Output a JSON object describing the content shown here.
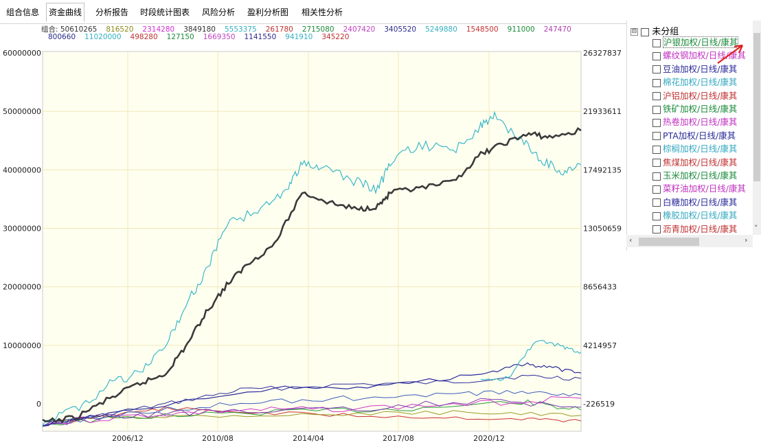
{
  "tabs": [
    {
      "label": "组合信息",
      "active": false
    },
    {
      "label": "资金曲线",
      "active": true
    },
    {
      "label": "分析报告",
      "active": false
    },
    {
      "label": "时段统计图表",
      "active": false
    },
    {
      "label": "风险分析",
      "active": false
    },
    {
      "label": "盈利分析图",
      "active": false
    },
    {
      "label": "相关性分析",
      "active": false
    }
  ],
  "legend": {
    "row1": [
      {
        "text": "组合: 50610265",
        "color": "#333333"
      },
      {
        "text": "816520",
        "color": "#8a8a1a"
      },
      {
        "text": "2314280",
        "color": "#d030d0"
      },
      {
        "text": "3849180",
        "color": "#333333"
      },
      {
        "text": "5553375",
        "color": "#33b0c0"
      },
      {
        "text": "261780",
        "color": "#c03030"
      },
      {
        "text": "2715080",
        "color": "#1a8a3a"
      },
      {
        "text": "2407420",
        "color": "#c040c0"
      },
      {
        "text": "3405520",
        "color": "#2a2a8a"
      },
      {
        "text": "5249880",
        "color": "#33b0c0"
      },
      {
        "text": "1548500",
        "color": "#c03030"
      },
      {
        "text": "911000",
        "color": "#1a8a3a"
      },
      {
        "text": "247470",
        "color": "#b040b0"
      }
    ],
    "row2": [
      {
        "text": "800660",
        "color": "#2a2a8a"
      },
      {
        "text": "11020000",
        "color": "#33b0c0"
      },
      {
        "text": "498280",
        "color": "#c03030"
      },
      {
        "text": "127150",
        "color": "#1a8a3a"
      },
      {
        "text": "1669350",
        "color": "#c040c0"
      },
      {
        "text": "1141550",
        "color": "#2a2a8a"
      },
      {
        "text": "941910",
        "color": "#33b0c0"
      },
      {
        "text": "345220",
        "color": "#c03030"
      }
    ]
  },
  "axes": {
    "left_ticks": [
      "60000000",
      "50000000",
      "40000000",
      "30000000",
      "20000000",
      "10000000",
      "0"
    ],
    "right_ticks": [
      "26327837",
      "21933611",
      "17492135",
      "13050659",
      "8656433",
      "4214957",
      "-226519"
    ],
    "x_ticks": [
      "2006/12",
      "2010/08",
      "2014/04",
      "2017/08",
      "2020/12"
    ]
  },
  "series_colors": {
    "combo": "#3a3a3a",
    "cyan": "#3ab7c8",
    "navy": "#2a2a9a",
    "purple": "#7a3ab0",
    "magenta": "#d035c8",
    "red": "#c83030",
    "green": "#2a9a3a",
    "olive": "#9a9a2a",
    "blue2": "#3a5ab8"
  },
  "tree": {
    "expander": "⊟",
    "root_label": "未分组",
    "items": [
      {
        "label": "沪银加权/日线/康其",
        "color": "#1a8a3a",
        "selected": true
      },
      {
        "label": "螺纹钢加权/日线/康其",
        "color": "#c030c0",
        "selected": false
      },
      {
        "label": "豆油加权/日线/康其",
        "color": "#2a2a9a",
        "selected": false
      },
      {
        "label": "棉花加权/日线/康其",
        "color": "#33a8c0",
        "selected": false
      },
      {
        "label": "沪铝加权/日线/康其",
        "color": "#c03030",
        "selected": false
      },
      {
        "label": "铁矿加权/日线/康其",
        "color": "#1a8a3a",
        "selected": false
      },
      {
        "label": "热卷加权/日线/康其",
        "color": "#c030c0",
        "selected": false
      },
      {
        "label": "PTA加权/日线/康其",
        "color": "#2a2a9a",
        "selected": false
      },
      {
        "label": "棕榈加权/日线/康其",
        "color": "#33a8c0",
        "selected": false
      },
      {
        "label": "焦煤加权/日线/康其",
        "color": "#c03030",
        "selected": false
      },
      {
        "label": "玉米加权/日线/康其",
        "color": "#1a8a3a",
        "selected": false
      },
      {
        "label": "菜籽油加权/日线/康其",
        "color": "#c030c0",
        "selected": false
      },
      {
        "label": "白糖加权/日线/康其",
        "color": "#2a2a9a",
        "selected": false
      },
      {
        "label": "橡胶加权/日线/康其",
        "color": "#33a8c0",
        "selected": false
      },
      {
        "label": "沥青加权/日线/康其",
        "color": "#c03030",
        "selected": false
      }
    ]
  },
  "scroll": {
    "left_arrow": "‹",
    "right_arrow": "›",
    "up_arrow": "˄",
    "down_arrow": "˅"
  }
}
